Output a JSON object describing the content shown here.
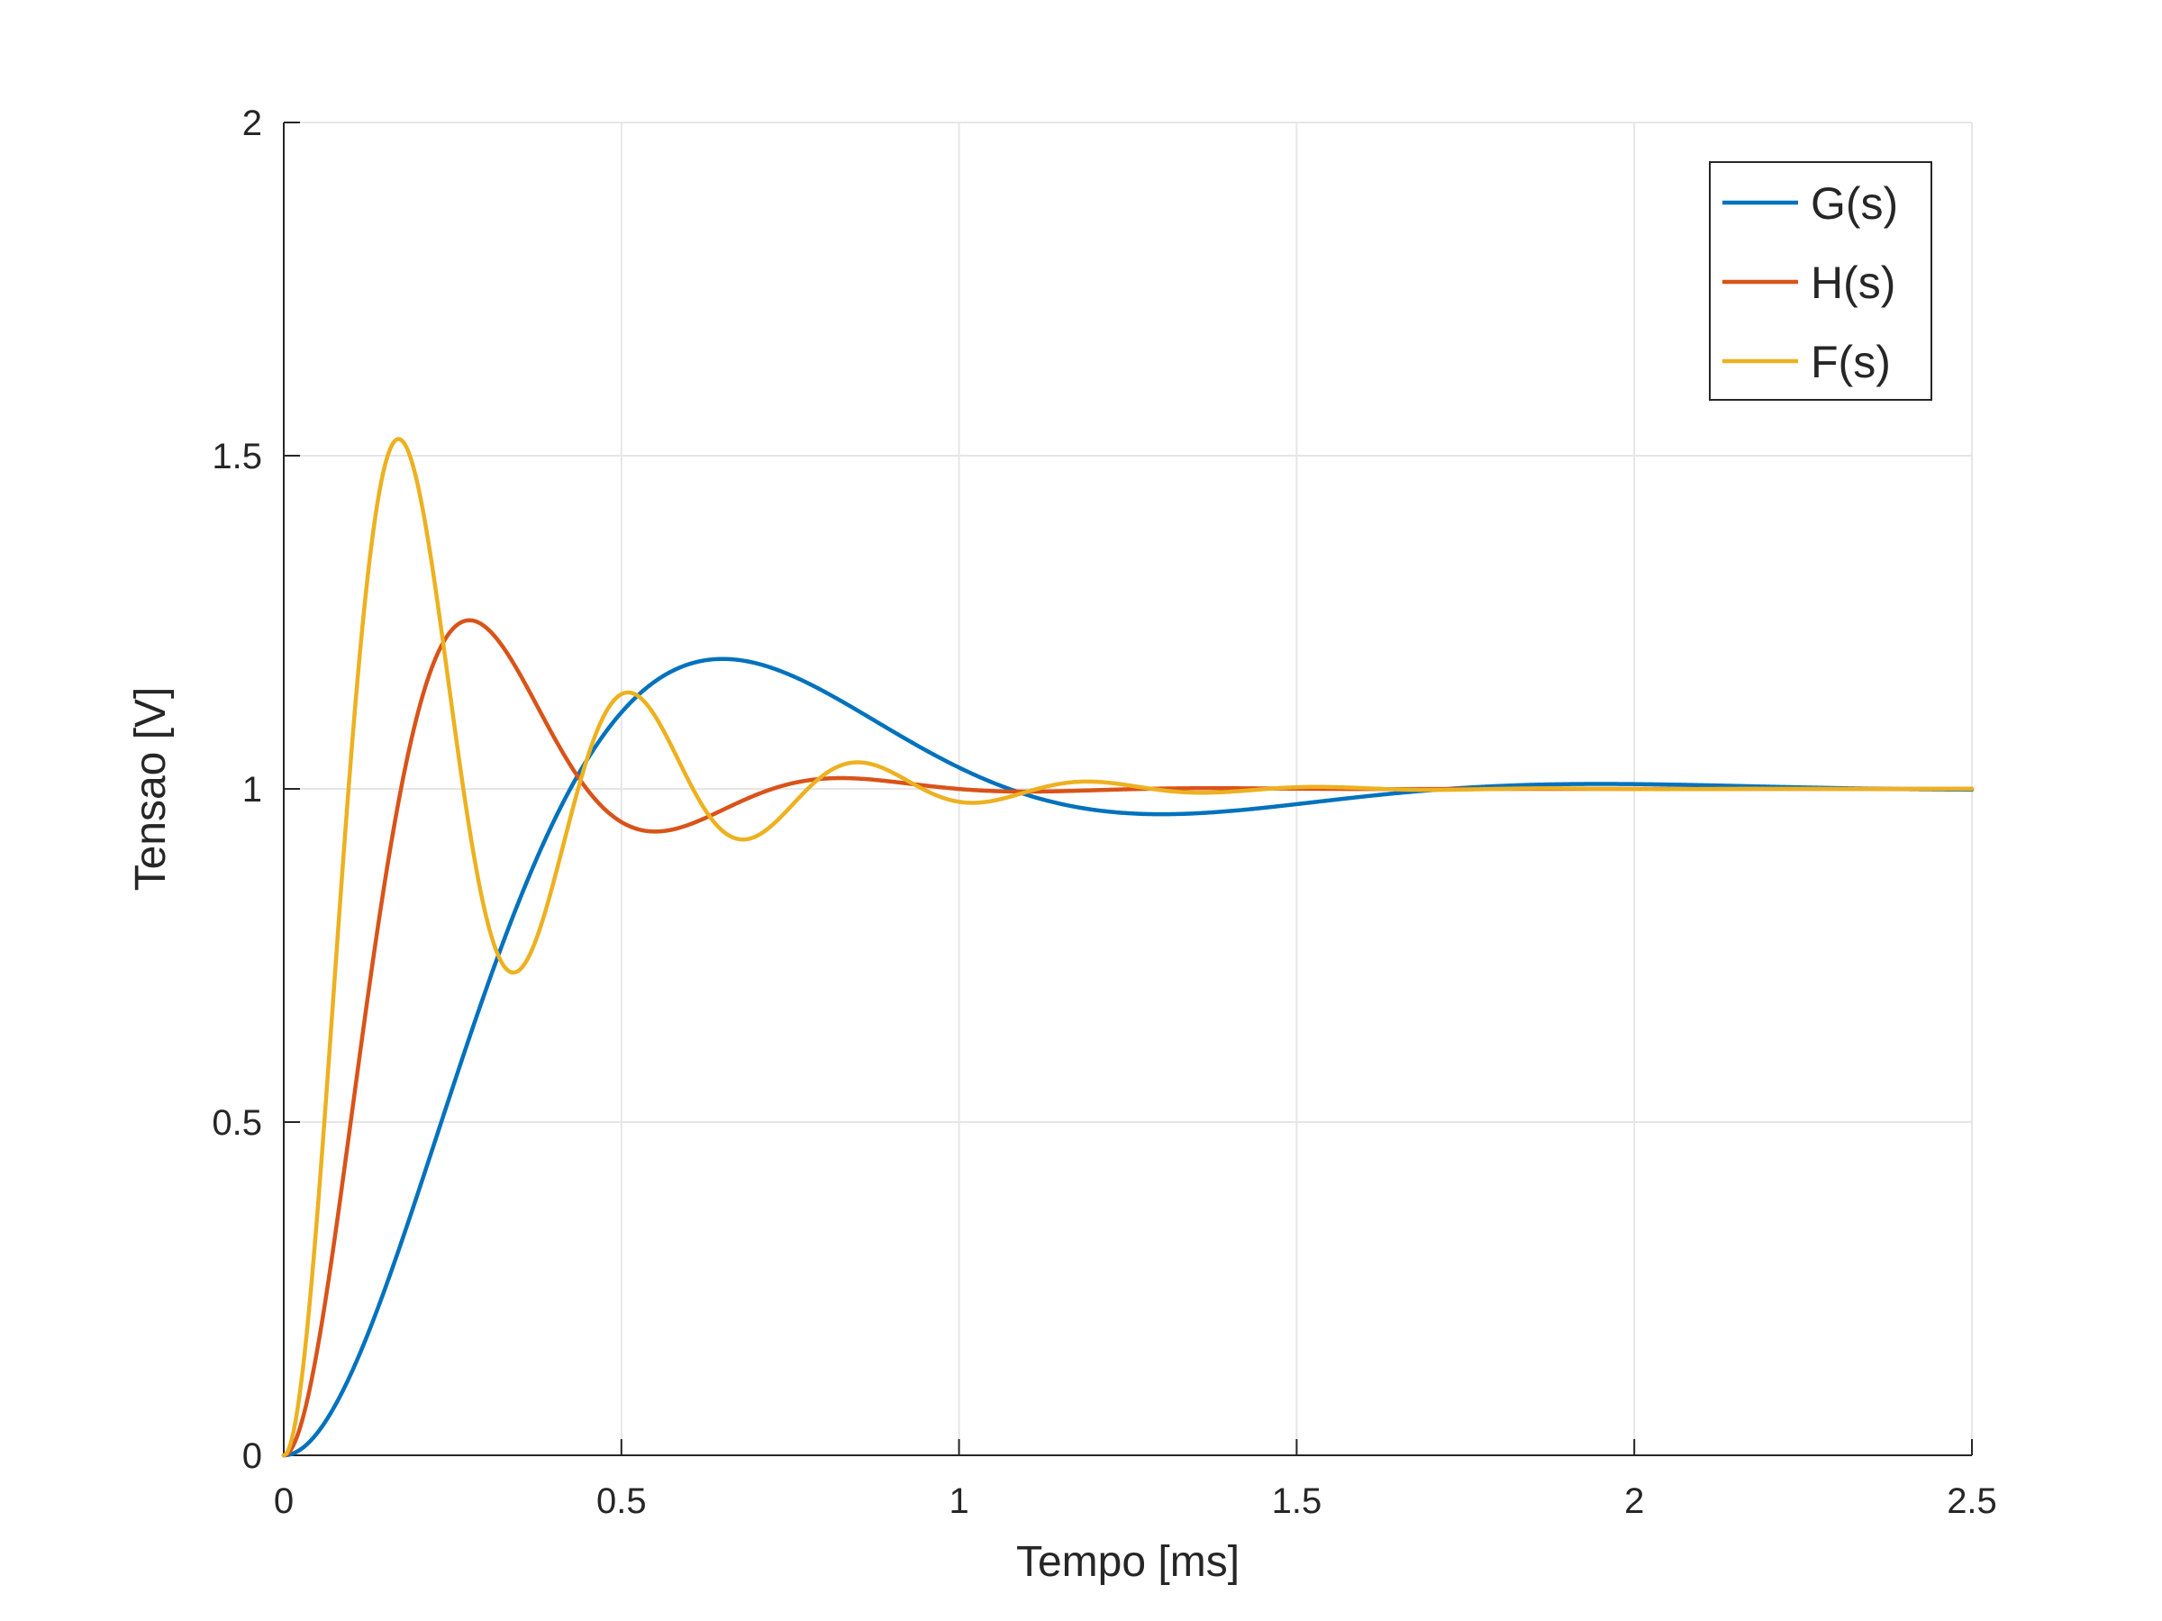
{
  "chart_data": {
    "type": "line",
    "title": "",
    "xlabel": "Tempo [ms]",
    "ylabel": "Tensao [V]",
    "xlim": [
      0,
      2.5
    ],
    "ylim": [
      0,
      2
    ],
    "x_ticks": [
      0,
      0.5,
      1,
      1.5,
      2,
      2.5
    ],
    "x_tick_labels": [
      "0",
      "0.5",
      "1",
      "1.5",
      "2",
      "2.5"
    ],
    "y_ticks": [
      0,
      0.5,
      1,
      1.5,
      2
    ],
    "y_tick_labels": [
      "0",
      "0.5",
      "1",
      "1.5",
      "2"
    ],
    "grid": true,
    "legend": "top-right",
    "series": [
      {
        "name": "G(s)",
        "color": "#0072BD",
        "model": "second-order step response",
        "peak": [
          0.65,
          1.195
        ],
        "undershoot": [
          1.3,
          0.963
        ],
        "final_value": 1
      },
      {
        "name": "H(s)",
        "color": "#D95319",
        "model": "second-order step response",
        "peak": [
          0.275,
          1.253
        ],
        "undershoot": [
          0.545,
          0.936
        ],
        "final_value": 1
      },
      {
        "name": "F(s)",
        "color": "#EDB120",
        "model": "second-order step response",
        "peak": [
          0.17,
          1.525
        ],
        "undershoot": [
          0.335,
          0.723
        ],
        "final_value": 1
      }
    ]
  }
}
